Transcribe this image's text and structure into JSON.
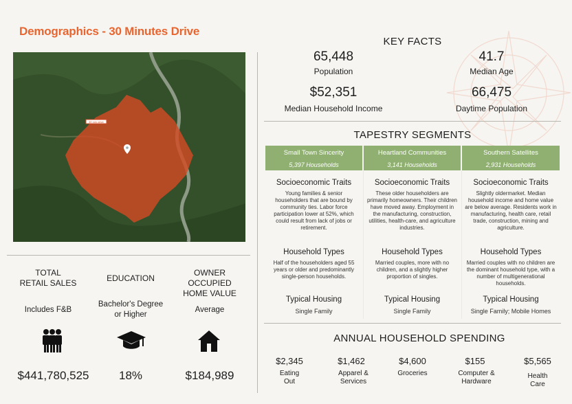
{
  "title": "Demographics - 30 Minutes Drive",
  "map": {
    "label": "30 min drive",
    "pin": "location-pin-icon"
  },
  "left": [
    {
      "label": "TOTAL\nRETAIL SALES",
      "sub": "Includes F&B",
      "icon": "people-icon",
      "value": "$441,780,525"
    },
    {
      "label": "EDUCATION",
      "sub": "Bachelor's Degree\nor Higher",
      "icon": "graduation-cap-icon",
      "value": "18%"
    },
    {
      "label": "OWNER\nOCCUPIED\nHOME VALUE",
      "sub": "Average",
      "icon": "house-icon",
      "value": "$184,989"
    }
  ],
  "key_facts": {
    "heading": "KEY FACTS",
    "items": [
      {
        "value": "65,448",
        "label": "Population"
      },
      {
        "value": "41.7",
        "label": "Median Age"
      },
      {
        "value": "$52,351",
        "label": "Median Household Income"
      },
      {
        "value": "66,475",
        "label": "Daytime Population"
      }
    ]
  },
  "tapestry": {
    "heading": "TAPESTRY SEGMENTS",
    "segments": [
      {
        "name": "Small Town Sincerity",
        "households": "5,397 Households",
        "socio_title": "Socioeconomic Traits",
        "socio": "Young families & senior householders that are bound by community ties.  Labor force participation lower at 52%, which could result from lack of jobs or retirement.",
        "hh_title": "Household Types",
        "hh": "Half of the householders aged 55 years or older and predominantly single-person households.",
        "housing_title": "Typical Housing",
        "housing": "Single Family"
      },
      {
        "name": "Heartland Communities",
        "households": "3,141 Households",
        "socio_title": "Socioeconomic Traits",
        "socio": "These older householders are primarily homeowners.  Their children have moved away. Employment in the manufacturing, construction, utilities, health-care, and agriculture industries.",
        "hh_title": "Household Types",
        "hh": "Married couples, more with no children, and a slightly higher proportion of singles.",
        "housing_title": "Typical Housing",
        "housing": "Single Family"
      },
      {
        "name": "Southern Satellites",
        "households": "2,931 Households",
        "socio_title": "Socioeconomic Traits",
        "socio": "Slightly oldermarket. Median household income and home value are below average. Residents work in manufacturing, health care, retail trade, construction, mining and agriculture.",
        "hh_title": "Household Types",
        "hh": "Married couples with no children are the dominant household type, with a number of multigenerational households.",
        "housing_title": "Typical Housing",
        "housing": "Single Family; Mobile Homes"
      }
    ]
  },
  "spending": {
    "heading": "ANNUAL HOUSEHOLD SPENDING",
    "items": [
      {
        "value": "$2,345",
        "label": "Eating\nOut"
      },
      {
        "value": "$1,462",
        "label": "Apparel &\nServices"
      },
      {
        "value": "$4,600",
        "label": "Groceries"
      },
      {
        "value": "$155",
        "label": "Computer &\nHardware"
      },
      {
        "value": "$5,565",
        "label": "Health\nCare"
      }
    ]
  },
  "colors": {
    "accent": "#e8652f",
    "segment_header": "#8fb070"
  }
}
